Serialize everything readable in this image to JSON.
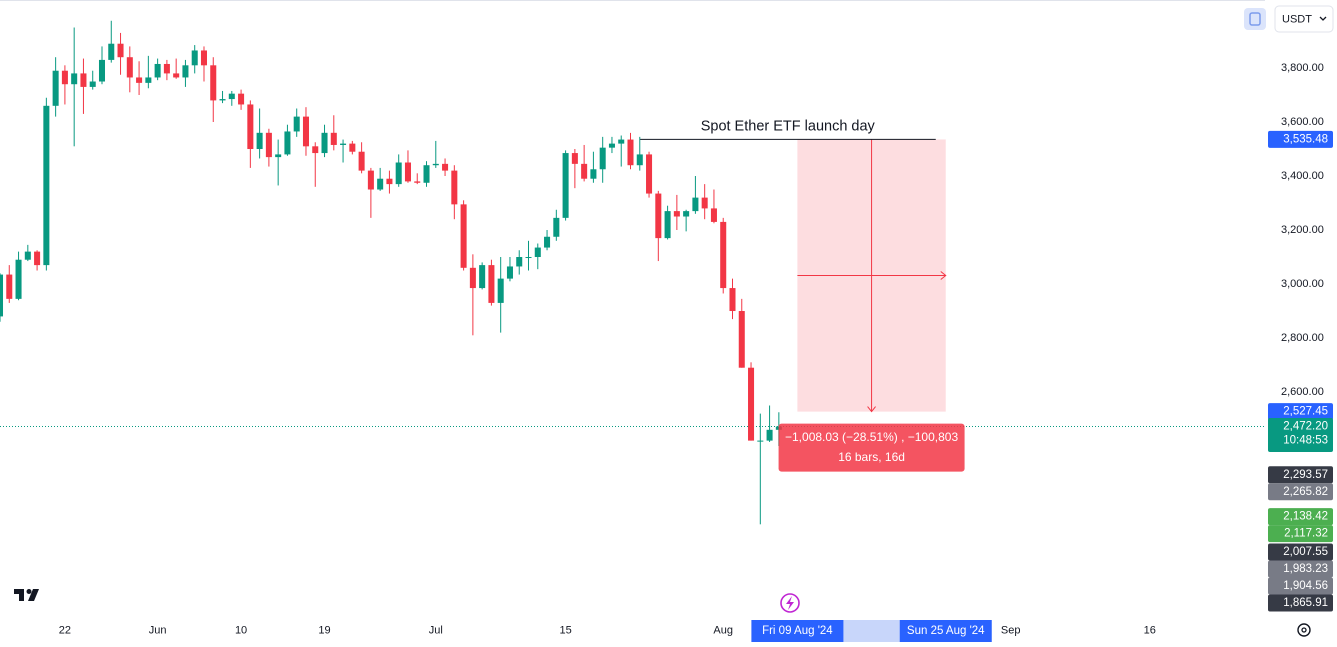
{
  "chart_data": {
    "type": "candlestick",
    "currency": "USDT",
    "x": [
      "2024-05-15",
      "2024-05-16",
      "2024-05-17",
      "2024-05-18",
      "2024-05-19",
      "2024-05-20",
      "2024-05-21",
      "2024-05-22",
      "2024-05-23",
      "2024-05-24",
      "2024-05-25",
      "2024-05-26",
      "2024-05-27",
      "2024-05-28",
      "2024-05-29",
      "2024-05-30",
      "2024-05-31",
      "2024-06-01",
      "2024-06-02",
      "2024-06-03",
      "2024-06-04",
      "2024-06-05",
      "2024-06-06",
      "2024-06-07",
      "2024-06-08",
      "2024-06-09",
      "2024-06-10",
      "2024-06-11",
      "2024-06-12",
      "2024-06-13",
      "2024-06-14",
      "2024-06-15",
      "2024-06-16",
      "2024-06-17",
      "2024-06-18",
      "2024-06-19",
      "2024-06-20",
      "2024-06-21",
      "2024-06-22",
      "2024-06-23",
      "2024-06-24",
      "2024-06-25",
      "2024-06-26",
      "2024-06-27",
      "2024-06-28",
      "2024-06-29",
      "2024-06-30",
      "2024-07-01",
      "2024-07-02",
      "2024-07-03",
      "2024-07-04",
      "2024-07-05",
      "2024-07-06",
      "2024-07-07",
      "2024-07-08",
      "2024-07-09",
      "2024-07-10",
      "2024-07-11",
      "2024-07-12",
      "2024-07-13",
      "2024-07-14",
      "2024-07-15",
      "2024-07-16",
      "2024-07-17",
      "2024-07-18",
      "2024-07-19",
      "2024-07-20",
      "2024-07-21",
      "2024-07-22",
      "2024-07-23",
      "2024-07-24",
      "2024-07-25",
      "2024-07-26",
      "2024-07-27",
      "2024-07-28",
      "2024-07-29",
      "2024-07-30",
      "2024-07-31",
      "2024-08-01",
      "2024-08-02",
      "2024-08-03",
      "2024-08-04",
      "2024-08-05",
      "2024-08-06",
      "2024-08-07"
    ],
    "open": [
      2880,
      3035,
      2945,
      3090,
      3120,
      3070,
      3660,
      3790,
      3740,
      3780,
      3730,
      3750,
      3830,
      3890,
      3840,
      3765,
      3745,
      3765,
      3815,
      3780,
      3765,
      3810,
      3865,
      3810,
      3680,
      3685,
      3705,
      3665,
      3500,
      3560,
      3470,
      3480,
      3565,
      3620,
      3510,
      3485,
      3560,
      3515,
      3520,
      3490,
      3420,
      3350,
      3390,
      3370,
      3450,
      3380,
      3375,
      3440,
      3445,
      3420,
      3295,
      3060,
      2985,
      3070,
      2930,
      3020,
      3065,
      3100,
      3100,
      3135,
      3175,
      3245,
      3485,
      3445,
      3390,
      3425,
      3505,
      3520,
      3535,
      3440,
      3480,
      3335,
      3170,
      3270,
      3250,
      3270,
      3320,
      3280,
      3230,
      2985,
      2900,
      2690,
      2420,
      2420,
      2460
    ],
    "high": [
      3040,
      3070,
      3120,
      3145,
      3125,
      3690,
      3840,
      3810,
      3950,
      3835,
      3790,
      3880,
      3975,
      3930,
      3880,
      3825,
      3845,
      3835,
      3830,
      3835,
      3830,
      3885,
      3880,
      3840,
      3715,
      3715,
      3720,
      3680,
      3650,
      3575,
      3535,
      3590,
      3650,
      3655,
      3525,
      3590,
      3625,
      3535,
      3530,
      3525,
      3430,
      3430,
      3420,
      3480,
      3495,
      3410,
      3455,
      3530,
      3465,
      3440,
      3310,
      3110,
      3080,
      3090,
      3100,
      3100,
      3125,
      3160,
      3150,
      3200,
      3275,
      3495,
      3500,
      3515,
      3490,
      3545,
      3545,
      3550,
      3560,
      3545,
      3490,
      3345,
      3290,
      3330,
      3275,
      3400,
      3370,
      3350,
      3245,
      3020,
      2945,
      2710,
      2520,
      2550,
      2525
    ],
    "low": [
      2860,
      2930,
      2940,
      3085,
      3050,
      3050,
      3620,
      3665,
      3510,
      3630,
      3720,
      3740,
      3820,
      3775,
      3710,
      3700,
      3725,
      3755,
      3755,
      3760,
      3730,
      3780,
      3750,
      3600,
      3670,
      3660,
      3645,
      3430,
      3465,
      3435,
      3365,
      3475,
      3545,
      3475,
      3360,
      3470,
      3495,
      3450,
      3480,
      3410,
      3245,
      3345,
      3335,
      3360,
      3375,
      3370,
      3360,
      3430,
      3400,
      3240,
      3050,
      2810,
      2980,
      2920,
      2820,
      3010,
      3035,
      3050,
      3055,
      3125,
      3160,
      3235,
      3355,
      3380,
      3375,
      3375,
      3485,
      3435,
      3425,
      3420,
      3320,
      3085,
      3165,
      3200,
      3195,
      3260,
      3240,
      3225,
      2965,
      2870,
      2690,
      2420,
      2110,
      2415,
      2400
    ],
    "close": [
      3035,
      2945,
      3090,
      3120,
      3070,
      3660,
      3790,
      3740,
      3780,
      3730,
      3750,
      3830,
      3890,
      3840,
      3765,
      3745,
      3765,
      3815,
      3780,
      3765,
      3810,
      3865,
      3810,
      3680,
      3685,
      3705,
      3665,
      3500,
      3560,
      3470,
      3480,
      3565,
      3620,
      3510,
      3485,
      3560,
      3515,
      3520,
      3490,
      3420,
      3350,
      3390,
      3370,
      3450,
      3380,
      3375,
      3440,
      3445,
      3420,
      3295,
      3060,
      2985,
      3070,
      2930,
      3020,
      3065,
      3100,
      3100,
      3135,
      3175,
      3245,
      3485,
      3445,
      3390,
      3425,
      3505,
      3520,
      3535,
      3440,
      3480,
      3335,
      3170,
      3270,
      3250,
      3270,
      3320,
      3280,
      3230,
      2985,
      2900,
      2690,
      2420,
      2420,
      2460,
      2472.2
    ],
    "up_color": "#089981",
    "down_color": "#f23645",
    "xlim": [
      "2024-05-15",
      "2024-09-28"
    ],
    "xticks": [
      {
        "value": "2024-05-22",
        "label": "22"
      },
      {
        "value": "2024-06-01",
        "label": "Jun"
      },
      {
        "value": "2024-06-10",
        "label": "10"
      },
      {
        "value": "2024-06-19",
        "label": "19"
      },
      {
        "value": "2024-07-01",
        "label": "Jul"
      },
      {
        "value": "2024-07-15",
        "label": "15"
      },
      {
        "value": "2024-08-01",
        "label": "Aug"
      },
      {
        "value": "2024-09-01",
        "label": "Sep"
      },
      {
        "value": "2024-09-16",
        "label": "16"
      }
    ],
    "ylim": [
      1755.6,
      4051.9
    ],
    "yticks": [
      {
        "value": 3800,
        "label": "3,800.00"
      },
      {
        "value": 3600,
        "label": "3,600.00"
      },
      {
        "value": 3400,
        "label": "3,400.00"
      },
      {
        "value": 3200,
        "label": "3,200.00"
      },
      {
        "value": 3000,
        "label": "3,000.00"
      },
      {
        "value": 2800,
        "label": "2,800.00"
      },
      {
        "value": 2600,
        "label": "2,600.00"
      }
    ],
    "grid": false,
    "current_price": {
      "value": 2472.2,
      "label": "2,472.20",
      "countdown": "10:48:53",
      "color": "#089981"
    },
    "price_tags": [
      {
        "value": 2293.57,
        "label": "2,293.57",
        "color": "#363a45"
      },
      {
        "value": 2265.82,
        "label": "2,265.82",
        "color": "#787b86"
      },
      {
        "value": 2138.42,
        "label": "2,138.42",
        "color": "#4caf50"
      },
      {
        "value": 2117.32,
        "label": "2,117.32",
        "color": "#4caf50"
      },
      {
        "value": 2007.55,
        "label": "2,007.55",
        "color": "#363a45"
      },
      {
        "value": 1983.23,
        "label": "1,983.23",
        "color": "#787b86"
      },
      {
        "value": 1904.56,
        "label": "1,904.56",
        "color": "#787b86"
      },
      {
        "value": 1865.91,
        "label": "1,865.91",
        "color": "#363a45"
      }
    ],
    "measure": {
      "start": {
        "value": "2024-08-09",
        "label": "Fri 09 Aug '24"
      },
      "end": {
        "value": "2024-08-25",
        "label": "Sun 25 Aug '24"
      },
      "top": {
        "value": 3535.48,
        "label": "3,535.48"
      },
      "bottom": {
        "value": 2527.45,
        "label": "2,527.45"
      },
      "color": "#f23645",
      "text": "−1,008.03 (−28.51%) , −100,803",
      "subtext": "16 bars, 16d"
    },
    "annotation": {
      "text": "Spot Ether ETF launch day",
      "x": "2024-07-23"
    }
  }
}
